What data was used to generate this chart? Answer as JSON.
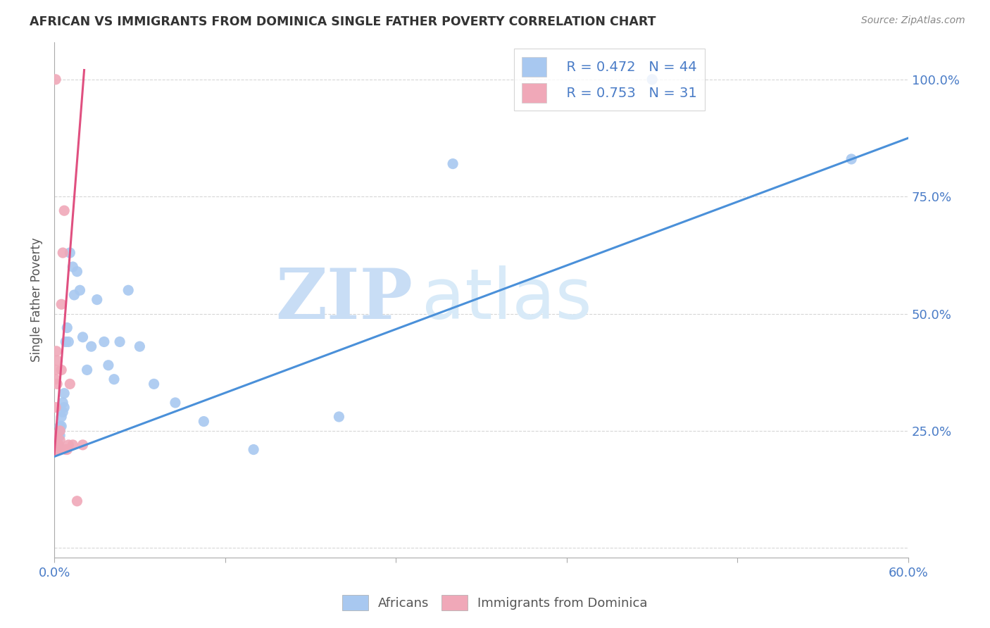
{
  "title": "AFRICAN VS IMMIGRANTS FROM DOMINICA SINGLE FATHER POVERTY CORRELATION CHART",
  "source": "Source: ZipAtlas.com",
  "ylabel": "Single Father Poverty",
  "xlim": [
    0.0,
    0.6
  ],
  "ylim": [
    -0.02,
    1.08
  ],
  "xticks": [
    0.0,
    0.12,
    0.24,
    0.36,
    0.48,
    0.6
  ],
  "yticks": [
    0.0,
    0.25,
    0.5,
    0.75,
    1.0
  ],
  "xticklabels": [
    "0.0%",
    "",
    "",
    "",
    "",
    "60.0%"
  ],
  "yticklabels": [
    "",
    "25.0%",
    "50.0%",
    "75.0%",
    "100.0%"
  ],
  "african_color": "#a8c8f0",
  "dominica_color": "#f0a8b8",
  "african_line_color": "#4a90d9",
  "dominica_line_color": "#e05080",
  "legend_r1": "R = 0.472",
  "legend_n1": "N = 44",
  "legend_r2": "R = 0.753",
  "legend_n2": "N = 31",
  "watermark_zip": "ZIP",
  "watermark_atlas": "atlas",
  "africans_label": "Africans",
  "dominica_label": "Immigrants from Dominica",
  "african_x": [
    0.001,
    0.001,
    0.001,
    0.002,
    0.002,
    0.002,
    0.002,
    0.003,
    0.003,
    0.004,
    0.004,
    0.004,
    0.005,
    0.005,
    0.006,
    0.006,
    0.007,
    0.007,
    0.008,
    0.009,
    0.01,
    0.011,
    0.013,
    0.014,
    0.016,
    0.018,
    0.02,
    0.023,
    0.026,
    0.03,
    0.035,
    0.038,
    0.042,
    0.046,
    0.052,
    0.06,
    0.07,
    0.085,
    0.105,
    0.14,
    0.2,
    0.28,
    0.42,
    0.56
  ],
  "african_y": [
    0.21,
    0.22,
    0.23,
    0.21,
    0.22,
    0.23,
    0.24,
    0.22,
    0.24,
    0.24,
    0.25,
    0.26,
    0.26,
    0.28,
    0.29,
    0.31,
    0.3,
    0.33,
    0.44,
    0.47,
    0.44,
    0.63,
    0.6,
    0.54,
    0.59,
    0.55,
    0.45,
    0.38,
    0.43,
    0.53,
    0.44,
    0.39,
    0.36,
    0.44,
    0.55,
    0.43,
    0.35,
    0.31,
    0.27,
    0.21,
    0.28,
    0.82,
    1.0,
    0.83
  ],
  "dominica_x": [
    0.0005,
    0.0005,
    0.0005,
    0.0005,
    0.0008,
    0.0008,
    0.001,
    0.001,
    0.001,
    0.001,
    0.001,
    0.0015,
    0.002,
    0.002,
    0.002,
    0.002,
    0.003,
    0.003,
    0.004,
    0.004,
    0.005,
    0.005,
    0.006,
    0.007,
    0.008,
    0.009,
    0.01,
    0.011,
    0.013,
    0.016,
    0.02
  ],
  "dominica_y": [
    0.21,
    0.22,
    0.23,
    0.24,
    0.36,
    0.38,
    0.21,
    0.22,
    0.23,
    0.3,
    1.0,
    0.42,
    0.21,
    0.22,
    0.35,
    0.4,
    0.21,
    0.22,
    0.23,
    0.25,
    0.38,
    0.52,
    0.63,
    0.72,
    0.21,
    0.21,
    0.22,
    0.35,
    0.22,
    0.1,
    0.22
  ],
  "blue_line_x0": 0.0,
  "blue_line_y0": 0.195,
  "blue_line_x1": 0.6,
  "blue_line_y1": 0.875,
  "pink_line_x0": 0.0,
  "pink_line_y0": 0.2,
  "pink_line_x1": 0.021,
  "pink_line_y1": 1.02
}
